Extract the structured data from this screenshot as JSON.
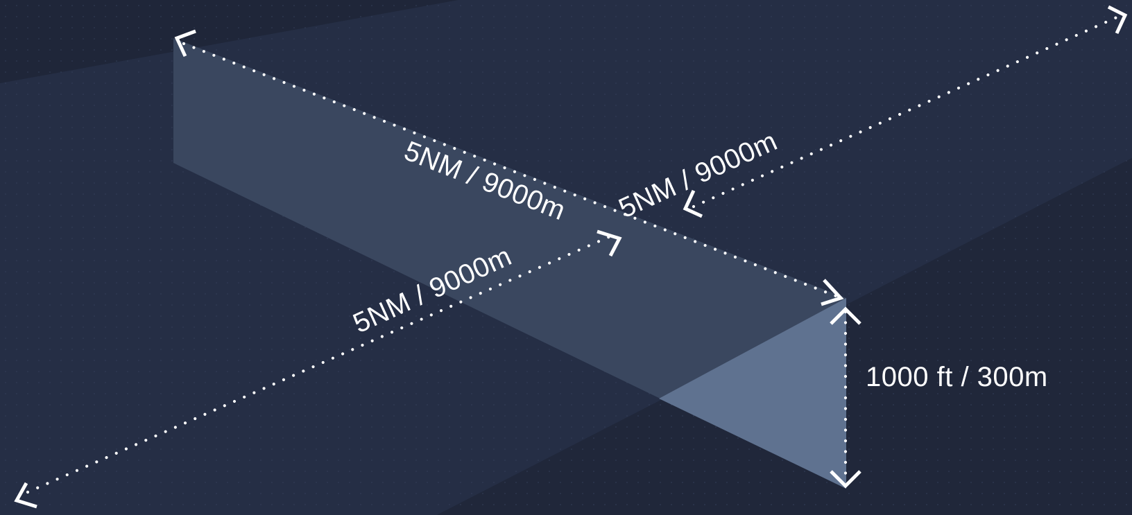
{
  "dimensions": {
    "length_label": "5NM / 9000m",
    "right_width_label": "5NM / 9000m",
    "left_width_label": "5NM / 9000m",
    "height_label": "1000 ft / 300m"
  },
  "colors": {
    "background": "#222a3e",
    "ground_light": "#26304a",
    "ground_dark": "#1f2639",
    "box_top": "#3a475f",
    "box_end": "#5f7290",
    "annotation": "#ffffff"
  }
}
